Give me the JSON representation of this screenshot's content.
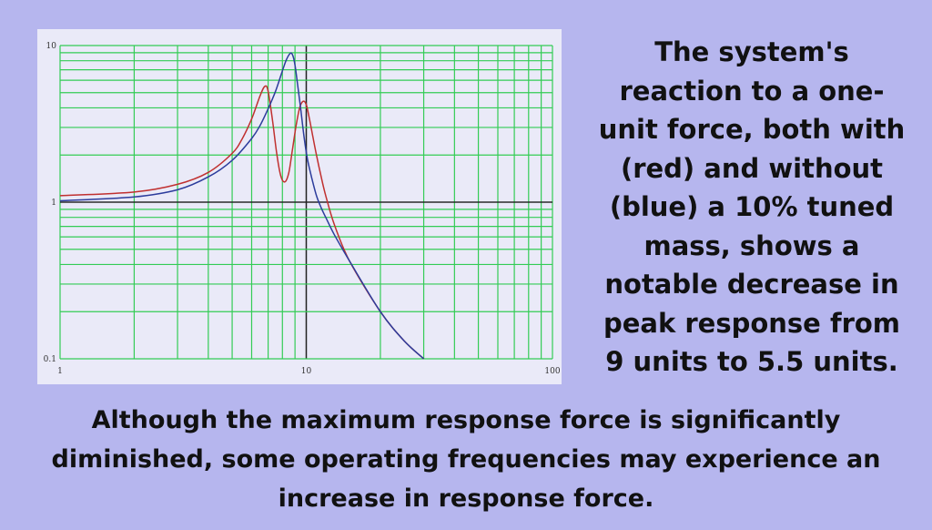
{
  "side_text": "The system's reaction to a one-unit force, both with (red) and without (blue) a 10% tuned mass, shows a notable decrease in peak response from 9 units to 5.5 units.",
  "bottom_text": "Although the maximum response force is significantly diminished, some operating frequencies may experience an increase in response force.",
  "colors": {
    "background": "#b6b6ee",
    "plot_background": "#eaeaf8",
    "grid_minor": "#33cc55",
    "grid_major": "#222222",
    "series_red": "#c03030",
    "series_blue": "#2c3c9c"
  },
  "chart_data": {
    "type": "line",
    "xscale": "log",
    "yscale": "log",
    "xlim": [
      1,
      100
    ],
    "ylim": [
      0.1,
      10
    ],
    "grid": true,
    "xticks": [
      "1",
      "10",
      "100"
    ],
    "yticks": [
      "0.1",
      "1",
      "10"
    ],
    "series": [
      {
        "color": "red",
        "x": [
          1,
          2,
          3,
          4,
          5,
          5.5,
          6,
          6.5,
          6.8,
          7,
          7.3,
          7.6,
          7.9,
          8.2,
          8.5,
          8.8,
          9.1,
          9.4,
          9.7,
          10,
          10.3,
          10.6,
          11,
          11.5,
          12,
          13,
          15,
          20,
          25,
          30
        ],
        "y": [
          1.1,
          1.16,
          1.3,
          1.55,
          2.05,
          2.55,
          3.4,
          4.8,
          5.5,
          5.1,
          3.3,
          2.0,
          1.45,
          1.35,
          1.55,
          2.2,
          3.1,
          4.0,
          4.4,
          4.2,
          3.4,
          2.7,
          2.0,
          1.45,
          1.1,
          0.72,
          0.42,
          0.2,
          0.13,
          0.1
        ]
      },
      {
        "color": "blue",
        "x": [
          1,
          2,
          3,
          4,
          5,
          6,
          6.5,
          7,
          7.5,
          8,
          8.3,
          8.6,
          8.8,
          9,
          9.2,
          9.5,
          9.8,
          10.1,
          10.5,
          11,
          11.5,
          12,
          13,
          15,
          20,
          25,
          30
        ],
        "y": [
          1.02,
          1.08,
          1.2,
          1.45,
          1.85,
          2.55,
          3.1,
          3.95,
          5.1,
          6.9,
          8.1,
          8.9,
          8.7,
          7.5,
          5.8,
          3.9,
          2.6,
          1.9,
          1.45,
          1.1,
          0.92,
          0.8,
          0.62,
          0.42,
          0.2,
          0.13,
          0.1
        ]
      }
    ]
  }
}
